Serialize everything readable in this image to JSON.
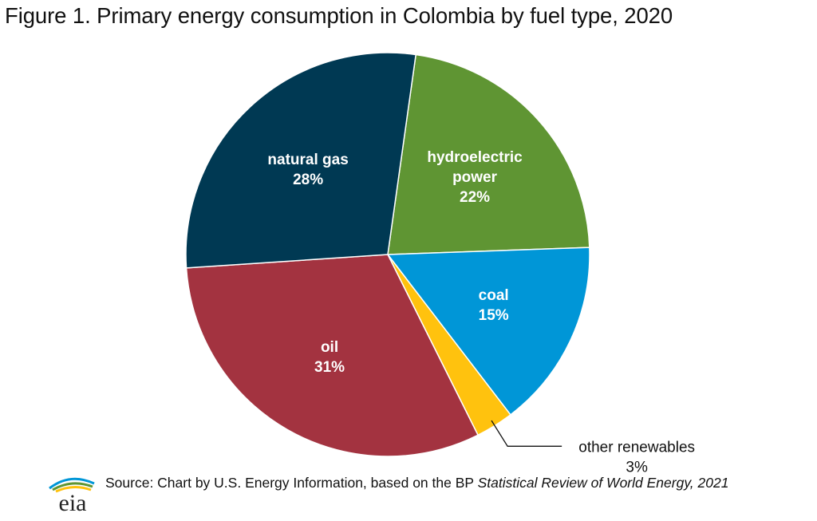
{
  "title": "Figure 1. Primary energy consumption in Colombia by fuel type, 2020",
  "chart_data": {
    "type": "pie",
    "title": "Figure 1. Primary energy consumption in Colombia by fuel type, 2020",
    "slices": [
      {
        "label": "hydroelectric power",
        "label_lines": [
          "hydroelectric",
          "power"
        ],
        "value": 22,
        "value_label": "22%",
        "color": "#5f9533"
      },
      {
        "label": "coal",
        "label_lines": [
          "coal"
        ],
        "value": 15,
        "value_label": "15%",
        "color": "#0096d7"
      },
      {
        "label": "other renewables",
        "label_lines": [
          "other renewables"
        ],
        "value": 3,
        "value_label": "3%",
        "color": "#ffc20e",
        "callout": true
      },
      {
        "label": "oil",
        "label_lines": [
          "oil"
        ],
        "value": 31,
        "value_label": "31%",
        "color": "#a33340"
      },
      {
        "label": "natural gas",
        "label_lines": [
          "natural gas"
        ],
        "value": 28,
        "value_label": "28%",
        "color": "#003953"
      }
    ],
    "start_angle_deg": 8
  },
  "footer": {
    "logo_text": "eia",
    "source_prefix": "Source:  Chart by U.S. Energy Information, based on the BP ",
    "source_italic": "Statistical Review of World Energy, 2021"
  }
}
